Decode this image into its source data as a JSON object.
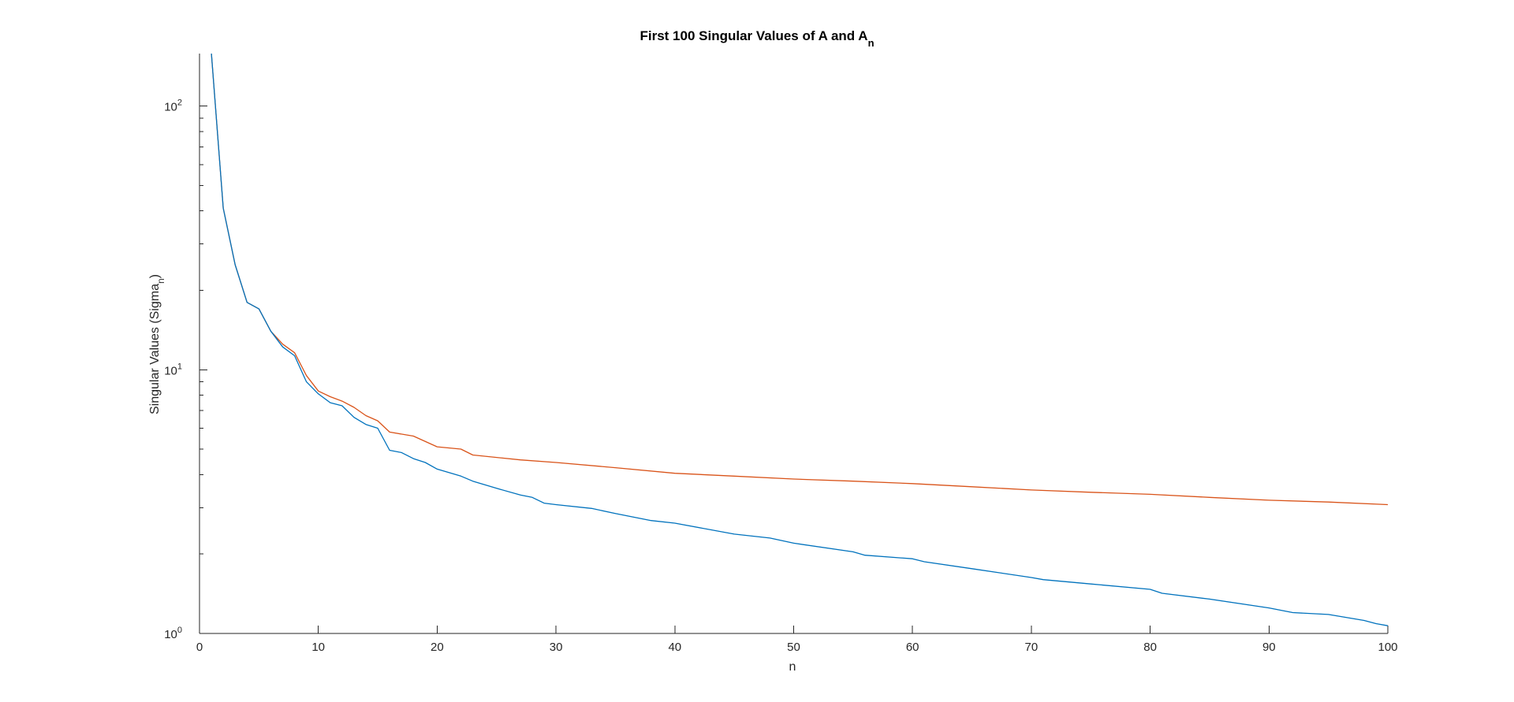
{
  "chart_data": {
    "type": "line",
    "title_main": "First 100 Singular Values of A and A",
    "title_sub": "n",
    "xlabel": "n",
    "ylabel_main": "Singular Values (Sigma",
    "ylabel_sub": "n",
    "ylabel_close": ")",
    "xlim": [
      0,
      100
    ],
    "ylim": [
      1,
      158
    ],
    "yscale": "log",
    "grid": false,
    "legend": "none",
    "xticks": [
      "0",
      "10",
      "20",
      "30",
      "40",
      "50",
      "60",
      "70",
      "80",
      "90",
      "100"
    ],
    "yticks": [
      {
        "value": 1,
        "base": "10",
        "exp": "0"
      },
      {
        "value": 10,
        "base": "10",
        "exp": "1"
      },
      {
        "value": 100,
        "base": "10",
        "exp": "2"
      }
    ],
    "series": [
      {
        "color": "#D95319",
        "x": [
          1,
          2,
          3,
          4,
          5,
          6,
          7,
          8,
          9,
          10,
          11,
          12,
          13,
          14,
          15,
          16,
          18,
          20,
          22,
          23,
          27,
          30,
          35,
          40,
          45,
          50,
          55,
          60,
          65,
          70,
          75,
          80,
          85,
          90,
          95,
          100
        ],
        "values": [
          158,
          41,
          25,
          18,
          17,
          14,
          12.5,
          11.6,
          9.5,
          8.3,
          7.9,
          7.6,
          7.2,
          6.7,
          6.4,
          5.8,
          5.6,
          5.1,
          5.0,
          4.75,
          4.55,
          4.45,
          4.25,
          4.05,
          3.95,
          3.85,
          3.78,
          3.7,
          3.6,
          3.5,
          3.43,
          3.37,
          3.28,
          3.2,
          3.15,
          3.08
        ]
      },
      {
        "color": "#0072BD",
        "x": [
          1,
          2,
          3,
          4,
          5,
          6,
          7,
          8,
          9,
          10,
          11,
          12,
          13,
          14,
          15,
          16,
          17,
          18,
          19,
          20,
          22,
          23,
          25,
          27,
          28,
          29,
          30,
          33,
          35,
          38,
          40,
          45,
          48,
          50,
          55,
          56,
          60,
          61,
          65,
          70,
          71,
          75,
          80,
          81,
          85,
          90,
          92,
          95,
          98,
          99,
          100
        ],
        "values": [
          158,
          41,
          25,
          18,
          17,
          14,
          12.2,
          11.3,
          9.0,
          8.1,
          7.5,
          7.3,
          6.6,
          6.2,
          6.0,
          4.95,
          4.85,
          4.6,
          4.45,
          4.2,
          3.95,
          3.78,
          3.55,
          3.35,
          3.28,
          3.12,
          3.08,
          2.98,
          2.85,
          2.68,
          2.62,
          2.38,
          2.3,
          2.2,
          2.04,
          1.98,
          1.92,
          1.87,
          1.76,
          1.63,
          1.6,
          1.54,
          1.47,
          1.42,
          1.35,
          1.25,
          1.2,
          1.18,
          1.12,
          1.09,
          1.07
        ]
      }
    ]
  }
}
